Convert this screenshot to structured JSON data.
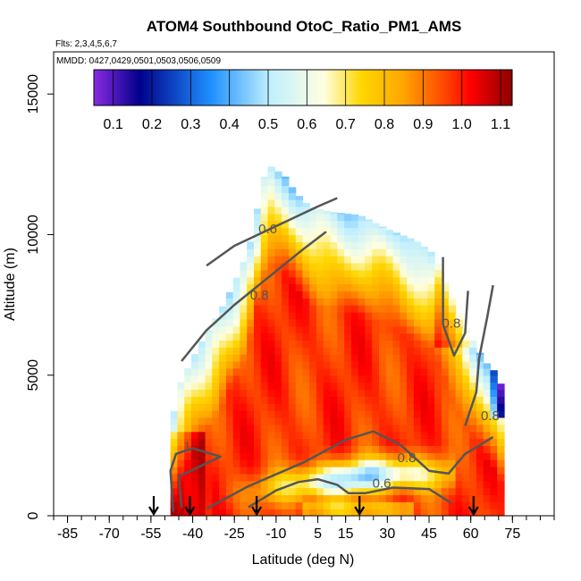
{
  "chart_data": {
    "type": "heatmap",
    "title": "ATOM4 Southbound OtoC_Ratio_PM1_AMS",
    "flights_note": "Flts: 2,3,4,5,6,7",
    "dates_note": "MMDD: 0427,0429,0501,0503,0506,0509",
    "xlabel": "Latitude (deg N)",
    "ylabel": "Altitude (m)",
    "xlim": [
      -90,
      90
    ],
    "ylim": [
      0,
      16500
    ],
    "x_tick_labels": [
      "-85",
      "-70",
      "-55",
      "-40",
      "-25",
      "-10",
      "5",
      "15",
      "30",
      "45",
      "60",
      "75"
    ],
    "x_tick_values": [
      -85,
      -70,
      -55,
      -40,
      -25,
      -10,
      5,
      15,
      30,
      45,
      60,
      75
    ],
    "y_tick_labels": [
      "0",
      "5000",
      "10000",
      "15000"
    ],
    "y_tick_values": [
      0,
      5000,
      10000,
      15000
    ],
    "colorbar": {
      "min": 0.05,
      "max": 1.13,
      "tick_labels": [
        "0.1",
        "0.2",
        "0.3",
        "0.4",
        "0.5",
        "0.6",
        "0.7",
        "0.8",
        "0.9",
        "1.0",
        "1.1"
      ],
      "tick_values": [
        0.1,
        0.2,
        0.3,
        0.4,
        0.5,
        0.6,
        0.7,
        0.8,
        0.9,
        1.0,
        1.1
      ],
      "colors": [
        "#8a2be2",
        "#00008b",
        "#1e90ff",
        "#bfefff",
        "#ffffe0",
        "#ffd700",
        "#ffa500",
        "#ff4500",
        "#ff0000",
        "#8b0000"
      ]
    },
    "contours": [
      {
        "level": "0.6",
        "label": "0.6",
        "label_lat": -13,
        "label_alt": 10050,
        "points": [
          [
            -35,
            8900
          ],
          [
            -25,
            9600
          ],
          [
            -10,
            10300
          ],
          [
            5,
            11000
          ],
          [
            12,
            11300
          ]
        ]
      },
      {
        "level": "0.8",
        "label": "0.8",
        "label_lat": -16,
        "label_alt": 7700,
        "points": [
          [
            -44,
            5500
          ],
          [
            -35,
            6600
          ],
          [
            -25,
            7500
          ],
          [
            -10,
            8700
          ],
          [
            0,
            9500
          ],
          [
            8,
            10100
          ]
        ]
      },
      {
        "level": "0.8",
        "label": "0.8",
        "label_lat": 37,
        "label_alt": 1900,
        "points": [
          [
            -35,
            250
          ],
          [
            -20,
            1050
          ],
          [
            0,
            1900
          ],
          [
            15,
            2700
          ],
          [
            25,
            3000
          ],
          [
            35,
            2500
          ],
          [
            45,
            1600
          ],
          [
            52,
            1500
          ],
          [
            58,
            2200
          ],
          [
            68,
            2800
          ]
        ]
      },
      {
        "level": "0.6",
        "label": "0.6",
        "label_lat": 28,
        "label_alt": 1000,
        "points": [
          [
            -20,
            300
          ],
          [
            -10,
            900
          ],
          [
            -2,
            1200
          ],
          [
            5,
            1300
          ],
          [
            12,
            1100
          ],
          [
            16,
            800
          ],
          [
            22,
            800
          ],
          [
            32,
            1000
          ],
          [
            45,
            950
          ],
          [
            53,
            450
          ]
        ]
      },
      {
        "level": "1",
        "label": "1",
        "label_lat": -42,
        "label_alt": 2300,
        "points": [
          [
            -47,
            150
          ],
          [
            -48,
            1600
          ],
          [
            -46,
            2200
          ],
          [
            -40,
            2400
          ],
          [
            -30,
            2100
          ],
          [
            -45,
            1400
          ],
          [
            -44,
            300
          ]
        ]
      },
      {
        "level": "0.8",
        "label": "0.8",
        "label_lat": 67,
        "label_alt": 3400,
        "points": [
          [
            58,
            3200
          ],
          [
            62,
            4400
          ],
          [
            63,
            5600
          ],
          [
            66,
            7100
          ],
          [
            68,
            8200
          ]
        ]
      },
      {
        "level": "0.8",
        "label": "0.8",
        "label_lat": 53,
        "label_alt": 6700,
        "points": [
          [
            50,
            9200
          ],
          [
            50,
            6800
          ],
          [
            54,
            5700
          ],
          [
            58,
            6500
          ],
          [
            59,
            8000
          ]
        ]
      }
    ],
    "flight_markers_lat": [
      -54,
      -41,
      -17,
      20,
      61
    ]
  }
}
